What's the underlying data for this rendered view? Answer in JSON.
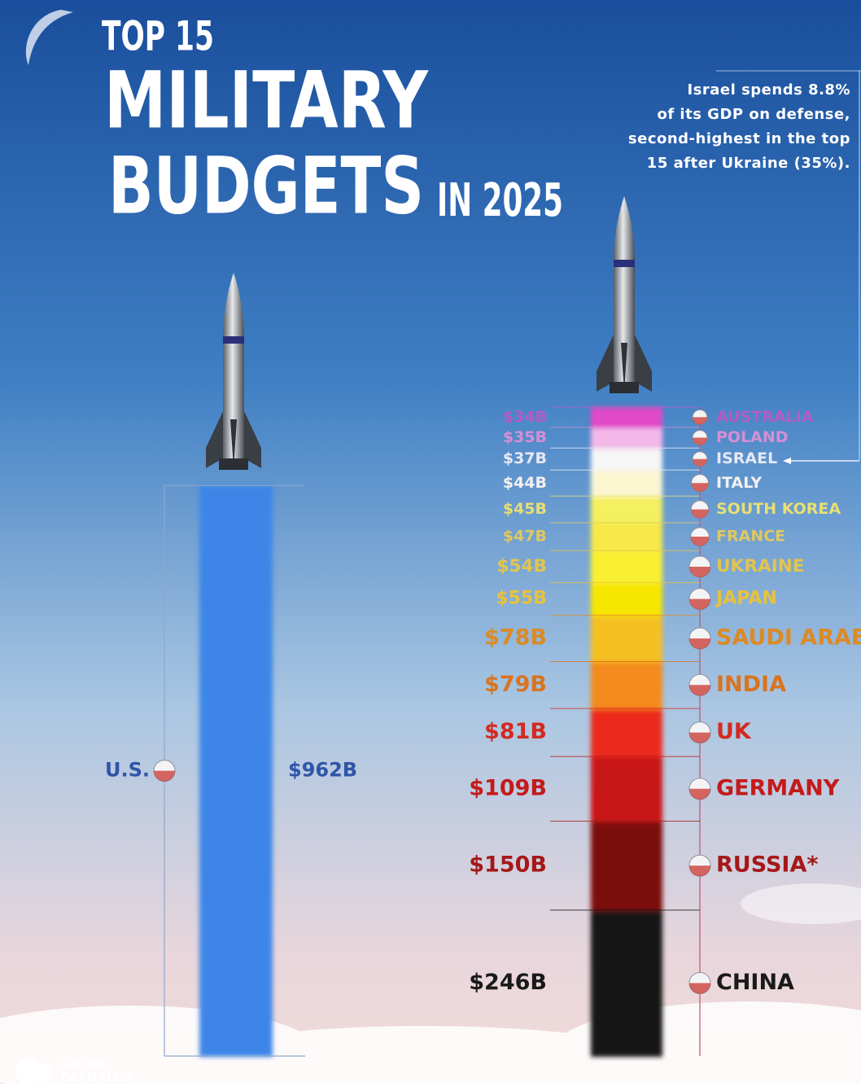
{
  "chart_data": {
    "type": "stacked_column",
    "title": {
      "line1": "TOP 15",
      "line2": "MILITARY",
      "line3": "BUDGETS",
      "line3_suffix": "IN 2025"
    },
    "annotation_lines": [
      "Israel spends 8.8%",
      "of its GDP on defense,",
      "second-highest in the top",
      "15 after Ukraine (35%)."
    ],
    "stacks": [
      {
        "categories": [
          "U.S."
        ],
        "values": [
          962
        ],
        "value_labels": [
          "$962B"
        ],
        "colors": [
          "#3d86e8"
        ],
        "label_colors": [
          "#2f55a8"
        ]
      },
      {
        "categories": [
          "AUSTRALIA",
          "POLAND",
          "ISRAEL",
          "ITALY",
          "SOUTH KOREA",
          "FRANCE",
          "UKRAINE",
          "JAPAN",
          "SAUDI ARABIA",
          "INDIA",
          "UK",
          "GERMANY",
          "RUSSIA*",
          "CHINA"
        ],
        "values": [
          34,
          35,
          37,
          44,
          45,
          47,
          54,
          55,
          78,
          79,
          81,
          109,
          150,
          246
        ],
        "value_labels": [
          "$34B",
          "$35B",
          "$37B",
          "$44B",
          "$45B",
          "$47B",
          "$54B",
          "$55B",
          "$78B",
          "$79B",
          "$81B",
          "$109B",
          "$150B",
          "$246B"
        ],
        "colors": [
          "#e048c8",
          "#f3b8e8",
          "#f6f6f6",
          "#fbf6d0",
          "#f4f060",
          "#f7e84a",
          "#faf030",
          "#f6e600",
          "#f6c024",
          "#f48a1e",
          "#ec2c1c",
          "#c81616",
          "#7c1010",
          "#161616"
        ],
        "label_colors": [
          "#b45cc4",
          "#d58fd6",
          "#e8e8f4",
          "#f2f0f0",
          "#e8df72",
          "#e0c860",
          "#e2c450",
          "#e8c23c",
          "#dc8a24",
          "#d87420",
          "#d22a22",
          "#c41a1a",
          "#a41818",
          "#1a1a1a"
        ]
      }
    ],
    "logo": {
      "line1": "VISUAL",
      "line2": "CAPITALIST"
    }
  }
}
